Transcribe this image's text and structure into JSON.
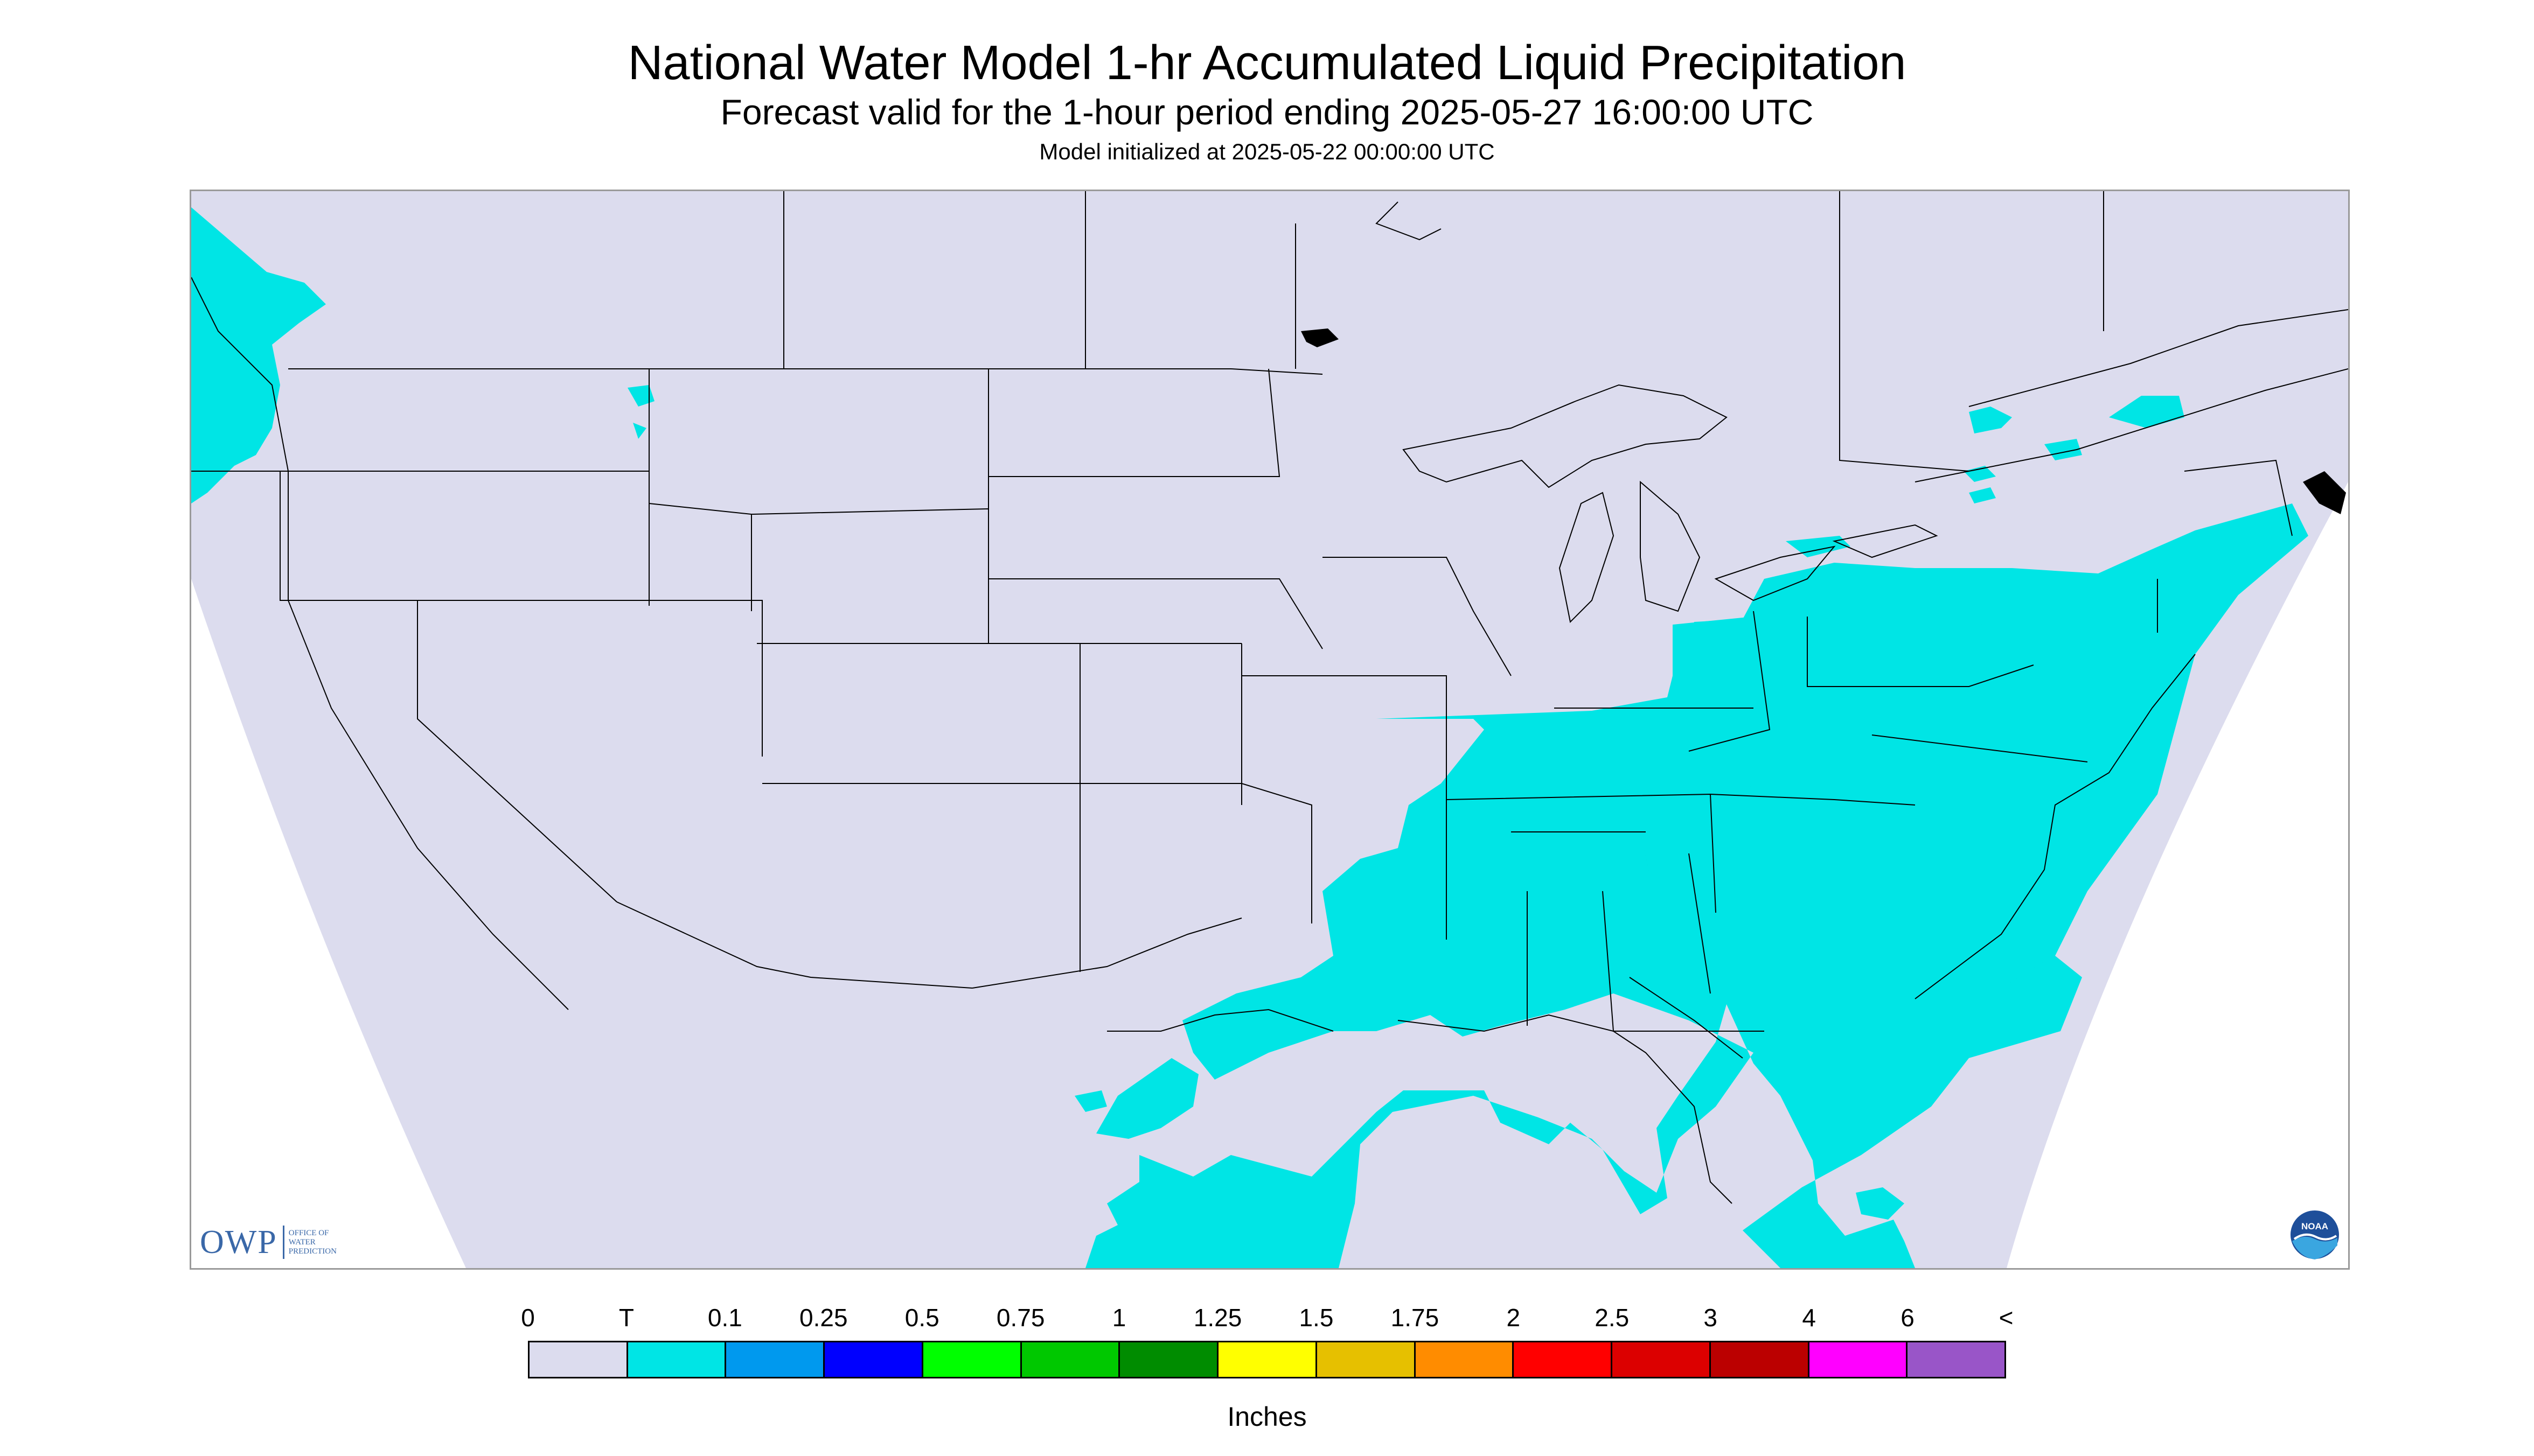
{
  "header": {
    "title": "National Water Model 1-hr Accumulated Liquid Precipitation",
    "subtitle": "Forecast valid for the 1-hour period ending 2025-05-27 16:00:00 UTC",
    "init_line": "Model initialized at 2025-05-22 00:00:00 UTC"
  },
  "map": {
    "background_color": "#dcdcee",
    "ocean_color": "#ffffff",
    "precip_color": "#00e5e5",
    "border_color": "#000000",
    "owp_logo": {
      "letters": "OWP",
      "subtitle_lines": [
        "OFFICE OF",
        "WATER",
        "PREDICTION"
      ]
    },
    "noaa_logo": {
      "text": "NOAA"
    }
  },
  "legend": {
    "labels": [
      "0",
      "T",
      "0.1",
      "0.25",
      "0.5",
      "0.75",
      "1",
      "1.25",
      "1.5",
      "1.75",
      "2",
      "2.5",
      "3",
      "4",
      "6",
      "<"
    ],
    "colors": [
      "#dcdcee",
      "#00e5e5",
      "#0099ee",
      "#0000ff",
      "#00ff00",
      "#00c800",
      "#008c00",
      "#ffff00",
      "#e6c000",
      "#ff8c00",
      "#ff0000",
      "#dc0000",
      "#bb0000",
      "#ff00ff",
      "#9955c8"
    ],
    "units": "Inches"
  }
}
